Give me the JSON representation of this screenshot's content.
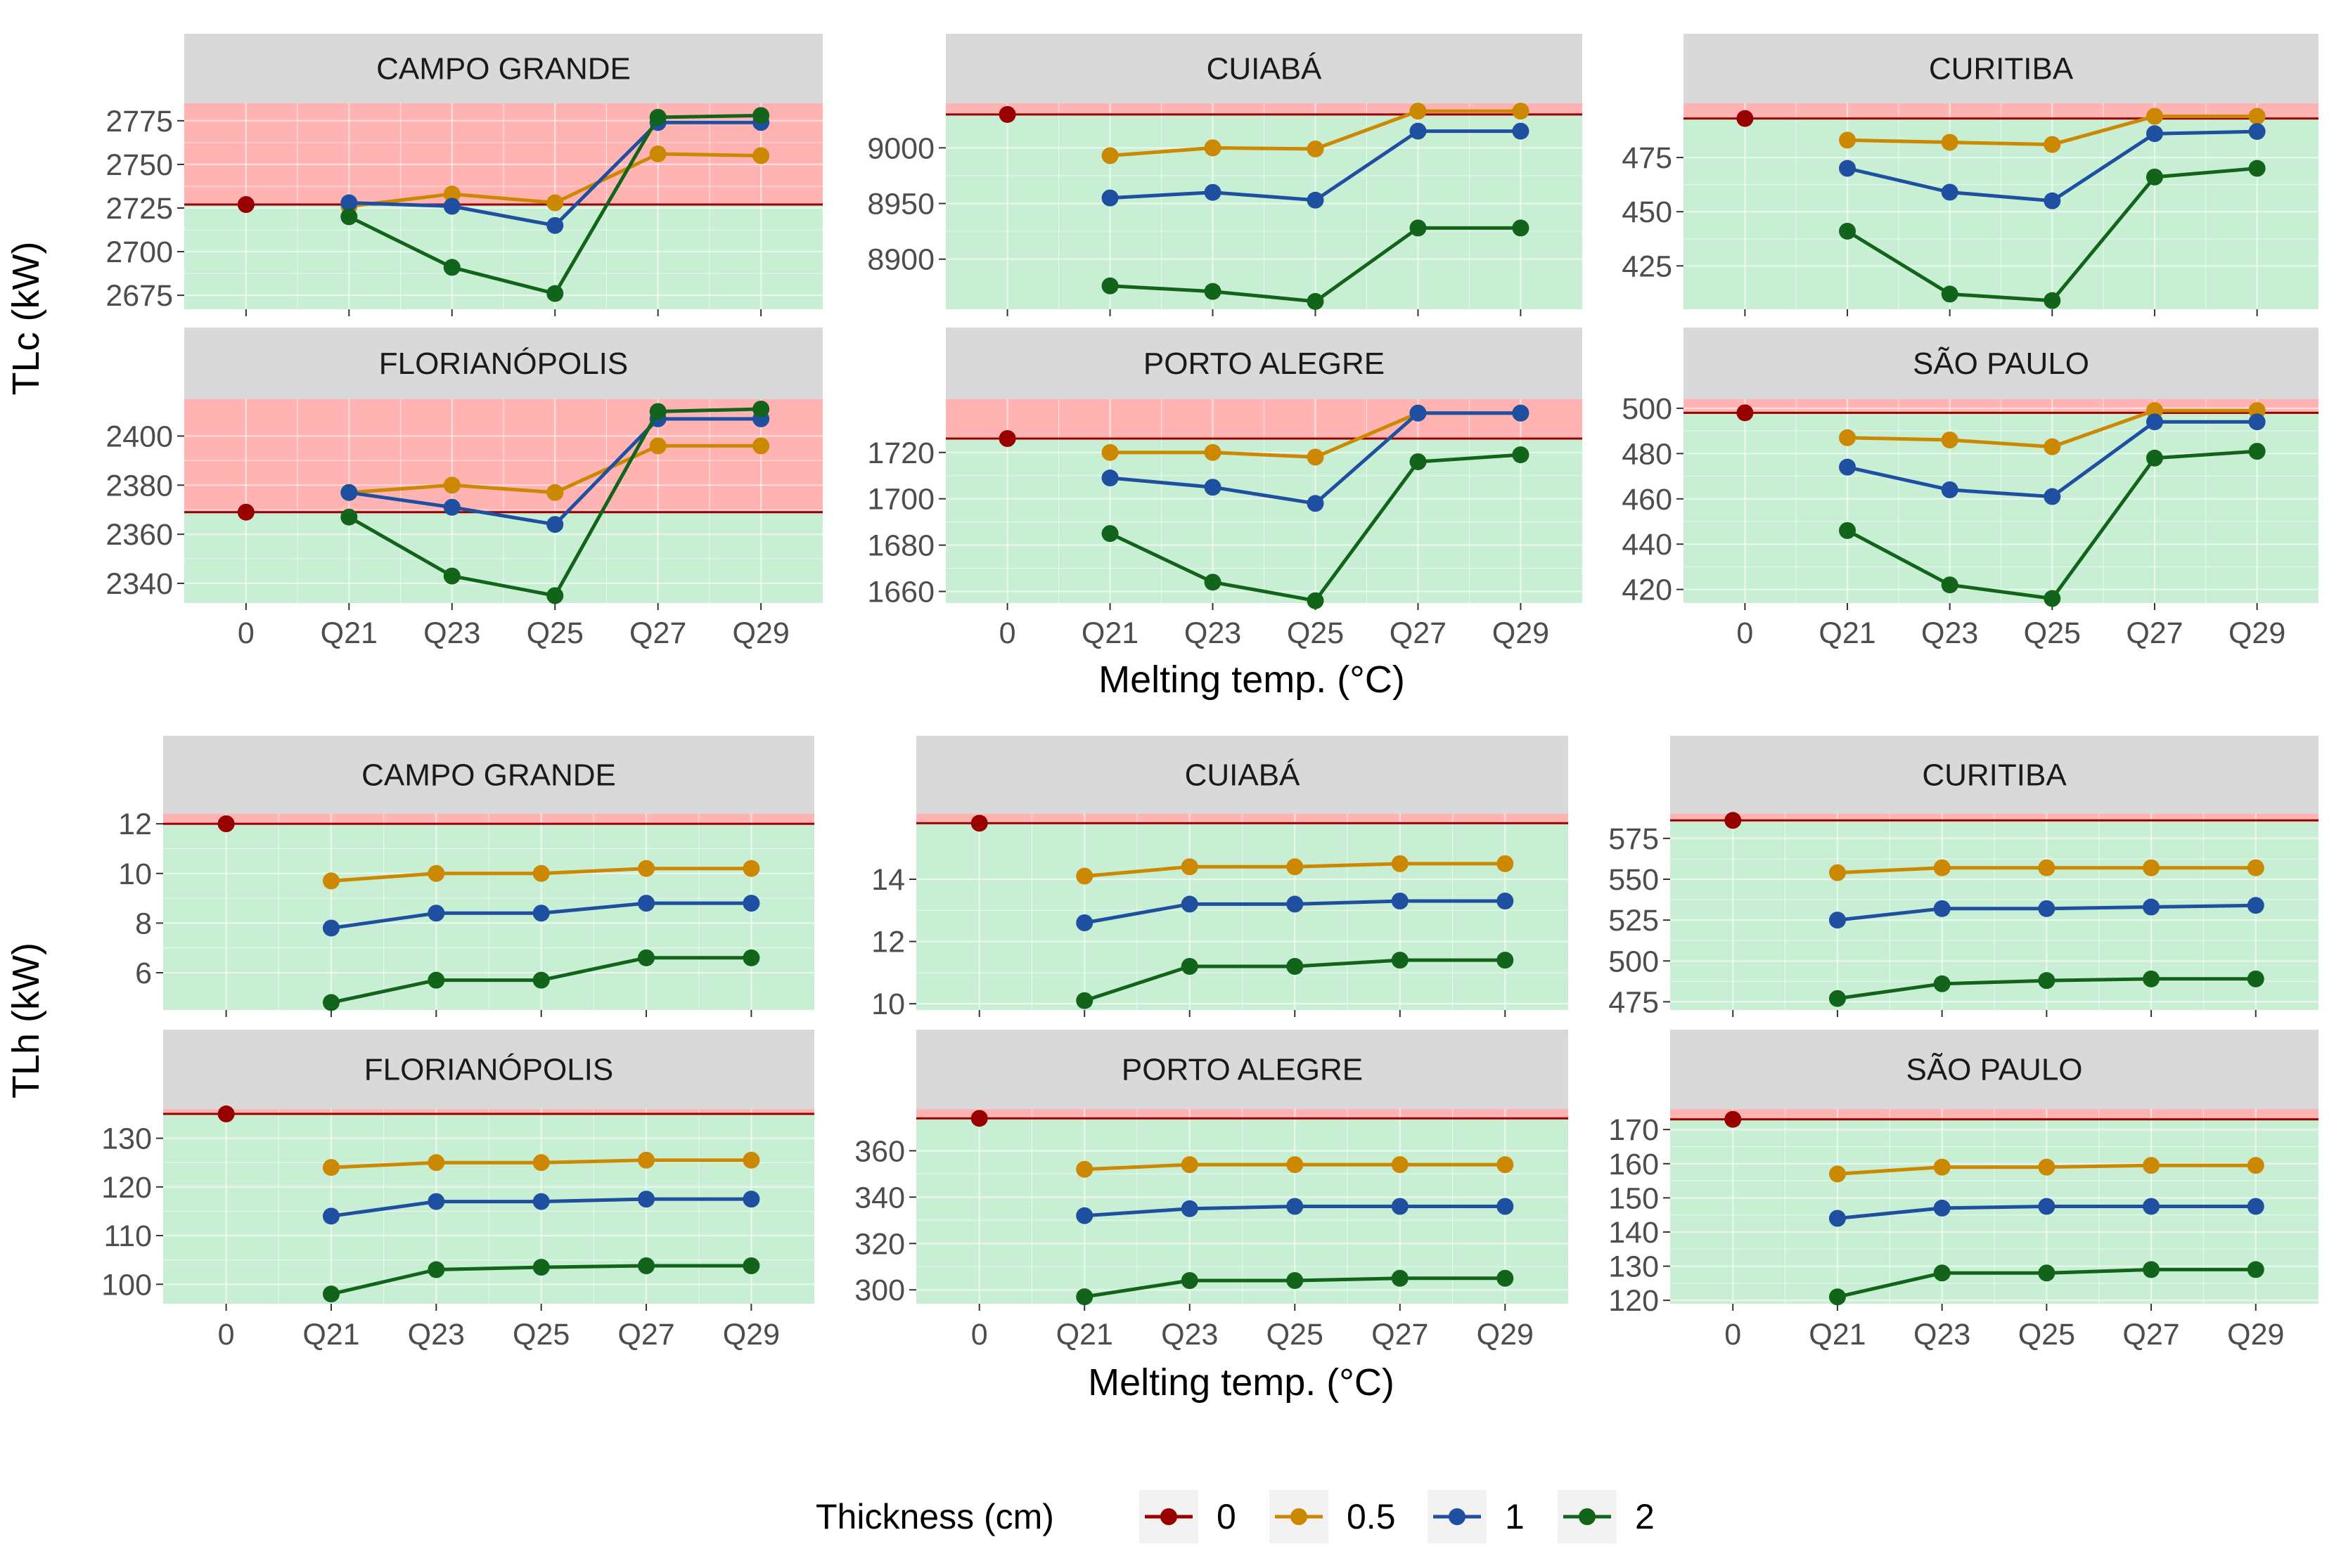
{
  "colors": {
    "t0": "#990000",
    "t05": "#cc8800",
    "t1": "#1f4fa0",
    "t2": "#11641a",
    "above_band": "#ffb3b3",
    "below_band": "#c8efd4",
    "strip": "#d9d9d9",
    "ref_line": "#990000"
  },
  "legend": {
    "title": "Thickness (cm)",
    "entries": [
      {
        "key": "t0",
        "label": "0"
      },
      {
        "key": "t05",
        "label": "0.5"
      },
      {
        "key": "t1",
        "label": "1"
      },
      {
        "key": "t2",
        "label": "2"
      }
    ]
  },
  "chart_data": [
    {
      "type": "line",
      "group": "TLc",
      "ylabel": "TLc (kW)",
      "xlabel": "Melting temp. (°C)",
      "categories": [
        "0",
        "Q21",
        "Q23",
        "Q25",
        "Q27",
        "Q29"
      ],
      "panels": [
        {
          "name": "CAMPO GRANDE",
          "ylim": [
            2667,
            2785
          ],
          "yticks": [
            2675,
            2700,
            2725,
            2750,
            2775
          ],
          "baseline": 2727,
          "series": [
            {
              "name": "0",
              "key": "t0",
              "values": [
                2727,
                null,
                null,
                null,
                null,
                null
              ]
            },
            {
              "name": "0.5",
              "key": "t05",
              "values": [
                null,
                2726,
                2733,
                2728,
                2756,
                2755
              ]
            },
            {
              "name": "1",
              "key": "t1",
              "values": [
                null,
                2728,
                2726,
                2715,
                2774,
                2774
              ]
            },
            {
              "name": "2",
              "key": "t2",
              "values": [
                null,
                2720,
                2691,
                2676,
                2777,
                2778
              ]
            }
          ]
        },
        {
          "name": "CUIABÁ",
          "ylim": [
            8855,
            9040
          ],
          "yticks": [
            8900,
            8950,
            9000
          ],
          "baseline": 9030,
          "series": [
            {
              "name": "0",
              "key": "t0",
              "values": [
                9030,
                null,
                null,
                null,
                null,
                null
              ]
            },
            {
              "name": "0.5",
              "key": "t05",
              "values": [
                null,
                8993,
                9000,
                8999,
                9033,
                9033
              ]
            },
            {
              "name": "1",
              "key": "t1",
              "values": [
                null,
                8955,
                8960,
                8953,
                9015,
                9015
              ]
            },
            {
              "name": "2",
              "key": "t2",
              "values": [
                null,
                8876,
                8871,
                8862,
                8928,
                8928
              ]
            }
          ]
        },
        {
          "name": "CURITIBA",
          "ylim": [
            405,
            500
          ],
          "yticks": [
            425,
            450,
            475
          ],
          "baseline": 493,
          "series": [
            {
              "name": "0",
              "key": "t0",
              "values": [
                493,
                null,
                null,
                null,
                null,
                null
              ]
            },
            {
              "name": "0.5",
              "key": "t05",
              "values": [
                null,
                483,
                482,
                481,
                494,
                494
              ]
            },
            {
              "name": "1",
              "key": "t1",
              "values": [
                null,
                470,
                459,
                455,
                486,
                487
              ]
            },
            {
              "name": "2",
              "key": "t2",
              "values": [
                null,
                441,
                412,
                409,
                466,
                470
              ]
            }
          ]
        },
        {
          "name": "FLORIANÓPOLIS",
          "ylim": [
            2332,
            2415
          ],
          "yticks": [
            2340,
            2360,
            2380,
            2400
          ],
          "baseline": 2369,
          "series": [
            {
              "name": "0",
              "key": "t0",
              "values": [
                2369,
                null,
                null,
                null,
                null,
                null
              ]
            },
            {
              "name": "0.5",
              "key": "t05",
              "values": [
                null,
                2377,
                2380,
                2377,
                2396,
                2396
              ]
            },
            {
              "name": "1",
              "key": "t1",
              "values": [
                null,
                2377,
                2371,
                2364,
                2407,
                2407
              ]
            },
            {
              "name": "2",
              "key": "t2",
              "values": [
                null,
                2367,
                2343,
                2335,
                2410,
                2411
              ]
            }
          ]
        },
        {
          "name": "PORTO ALEGRE",
          "ylim": [
            1655,
            1743
          ],
          "yticks": [
            1660,
            1680,
            1700,
            1720
          ],
          "baseline": 1726,
          "series": [
            {
              "name": "0",
              "key": "t0",
              "values": [
                1726,
                null,
                null,
                null,
                null,
                null
              ]
            },
            {
              "name": "0.5",
              "key": "t05",
              "values": [
                null,
                1720,
                1720,
                1718,
                1737,
                1737
              ]
            },
            {
              "name": "1",
              "key": "t1",
              "values": [
                null,
                1709,
                1705,
                1698,
                1737,
                1737
              ]
            },
            {
              "name": "2",
              "key": "t2",
              "values": [
                null,
                1685,
                1664,
                1656,
                1716,
                1719
              ]
            }
          ]
        },
        {
          "name": "SÃO PAULO",
          "ylim": [
            414,
            504
          ],
          "yticks": [
            420,
            440,
            460,
            480,
            500
          ],
          "baseline": 498,
          "series": [
            {
              "name": "0",
              "key": "t0",
              "values": [
                498,
                null,
                null,
                null,
                null,
                null
              ]
            },
            {
              "name": "0.5",
              "key": "t05",
              "values": [
                null,
                487,
                486,
                483,
                499,
                499
              ]
            },
            {
              "name": "1",
              "key": "t1",
              "values": [
                null,
                474,
                464,
                461,
                494,
                494
              ]
            },
            {
              "name": "2",
              "key": "t2",
              "values": [
                null,
                446,
                422,
                416,
                478,
                481
              ]
            }
          ]
        }
      ]
    },
    {
      "type": "line",
      "group": "TLh",
      "ylabel": "TLh (kW)",
      "xlabel": "Melting temp. (°C)",
      "categories": [
        "0",
        "Q21",
        "Q23",
        "Q25",
        "Q27",
        "Q29"
      ],
      "panels": [
        {
          "name": "CAMPO GRANDE",
          "ylim": [
            4.5,
            12.4
          ],
          "yticks": [
            6,
            8,
            10,
            12
          ],
          "baseline": 12.0,
          "series": [
            {
              "name": "0",
              "key": "t0",
              "values": [
                12.0,
                null,
                null,
                null,
                null,
                null
              ]
            },
            {
              "name": "0.5",
              "key": "t05",
              "values": [
                null,
                9.7,
                10.0,
                10.0,
                10.2,
                10.2
              ]
            },
            {
              "name": "1",
              "key": "t1",
              "values": [
                null,
                7.8,
                8.4,
                8.4,
                8.8,
                8.8
              ]
            },
            {
              "name": "2",
              "key": "t2",
              "values": [
                null,
                4.8,
                5.7,
                5.7,
                6.6,
                6.6
              ]
            }
          ]
        },
        {
          "name": "CUIABÁ",
          "ylim": [
            9.8,
            16.1
          ],
          "yticks": [
            10,
            12,
            14
          ],
          "baseline": 15.8,
          "series": [
            {
              "name": "0",
              "key": "t0",
              "values": [
                15.8,
                null,
                null,
                null,
                null,
                null
              ]
            },
            {
              "name": "0.5",
              "key": "t05",
              "values": [
                null,
                14.1,
                14.4,
                14.4,
                14.5,
                14.5
              ]
            },
            {
              "name": "1",
              "key": "t1",
              "values": [
                null,
                12.6,
                13.2,
                13.2,
                13.3,
                13.3
              ]
            },
            {
              "name": "2",
              "key": "t2",
              "values": [
                null,
                10.1,
                11.2,
                11.2,
                11.4,
                11.4
              ]
            }
          ]
        },
        {
          "name": "CURITIBA",
          "ylim": [
            470,
            590
          ],
          "yticks": [
            475,
            500,
            525,
            550,
            575
          ],
          "baseline": 586,
          "series": [
            {
              "name": "0",
              "key": "t0",
              "values": [
                586,
                null,
                null,
                null,
                null,
                null
              ]
            },
            {
              "name": "0.5",
              "key": "t05",
              "values": [
                null,
                554,
                557,
                557,
                557,
                557
              ]
            },
            {
              "name": "1",
              "key": "t1",
              "values": [
                null,
                525,
                532,
                532,
                533,
                534
              ]
            },
            {
              "name": "2",
              "key": "t2",
              "values": [
                null,
                477,
                486,
                488,
                489,
                489
              ]
            }
          ]
        },
        {
          "name": "FLORIANÓPOLIS",
          "ylim": [
            96,
            136
          ],
          "yticks": [
            100,
            110,
            120,
            130
          ],
          "baseline": 135,
          "series": [
            {
              "name": "0",
              "key": "t0",
              "values": [
                135,
                null,
                null,
                null,
                null,
                null
              ]
            },
            {
              "name": "0.5",
              "key": "t05",
              "values": [
                null,
                124,
                125,
                125,
                125.5,
                125.5
              ]
            },
            {
              "name": "1",
              "key": "t1",
              "values": [
                null,
                114,
                117,
                117,
                117.5,
                117.5
              ]
            },
            {
              "name": "2",
              "key": "t2",
              "values": [
                null,
                98,
                103,
                103.5,
                103.8,
                103.8
              ]
            }
          ]
        },
        {
          "name": "PORTO ALEGRE",
          "ylim": [
            294,
            378
          ],
          "yticks": [
            300,
            320,
            340,
            360
          ],
          "baseline": 374,
          "series": [
            {
              "name": "0",
              "key": "t0",
              "values": [
                374,
                null,
                null,
                null,
                null,
                null
              ]
            },
            {
              "name": "0.5",
              "key": "t05",
              "values": [
                null,
                352,
                354,
                354,
                354,
                354
              ]
            },
            {
              "name": "1",
              "key": "t1",
              "values": [
                null,
                332,
                335,
                336,
                336,
                336
              ]
            },
            {
              "name": "2",
              "key": "t2",
              "values": [
                null,
                297,
                304,
                304,
                305,
                305
              ]
            }
          ]
        },
        {
          "name": "SÃO PAULO",
          "ylim": [
            119,
            176
          ],
          "yticks": [
            120,
            130,
            140,
            150,
            160,
            170
          ],
          "baseline": 173,
          "series": [
            {
              "name": "0",
              "key": "t0",
              "values": [
                173,
                null,
                null,
                null,
                null,
                null
              ]
            },
            {
              "name": "0.5",
              "key": "t05",
              "values": [
                null,
                157,
                159,
                159,
                159.5,
                159.5
              ]
            },
            {
              "name": "1",
              "key": "t1",
              "values": [
                null,
                144,
                147,
                147.5,
                147.5,
                147.5
              ]
            },
            {
              "name": "2",
              "key": "t2",
              "values": [
                null,
                121,
                128,
                128,
                129,
                129
              ]
            }
          ]
        }
      ]
    }
  ]
}
